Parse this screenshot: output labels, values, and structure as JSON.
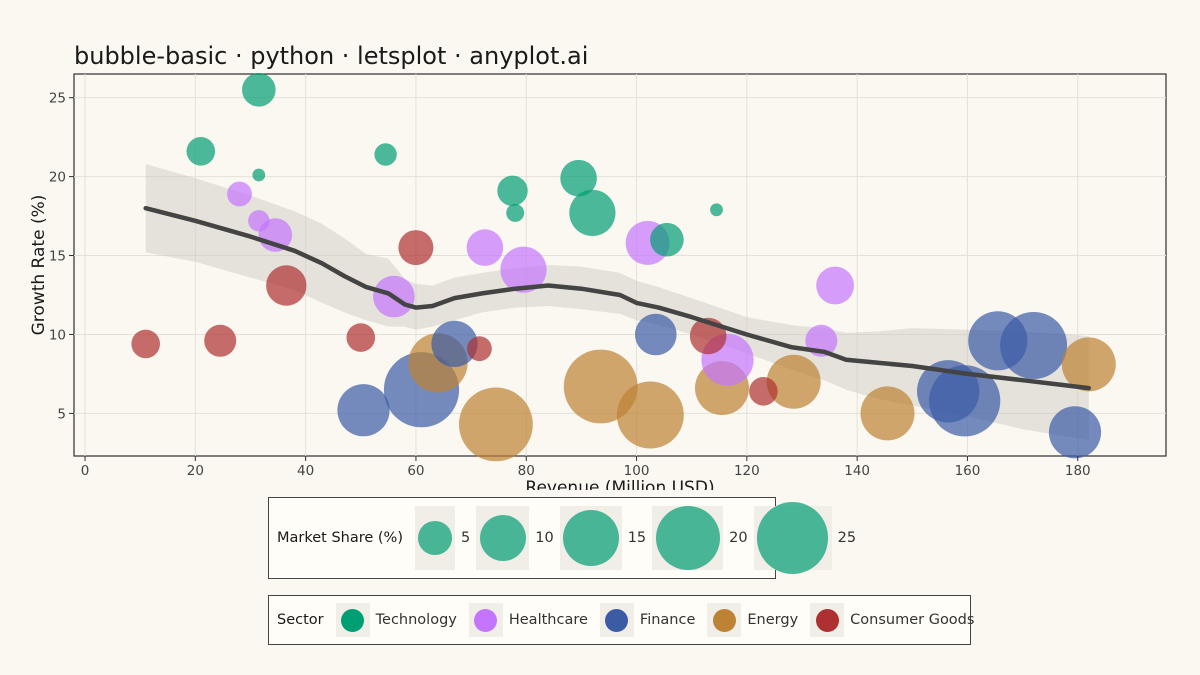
{
  "title": "bubble-basic · python · letsplot · anyplot.ai",
  "chart_data": {
    "type": "scatter",
    "subtype": "bubble",
    "title": "bubble-basic · python · letsplot · anyplot.ai",
    "xlabel": "Revenue (Million USD)",
    "ylabel": "Growth Rate (%)",
    "xlim": [
      -2,
      196
    ],
    "ylim": [
      2.3,
      26.5
    ],
    "xticks": [
      0,
      20,
      40,
      60,
      80,
      100,
      120,
      140,
      160,
      180
    ],
    "yticks": [
      5,
      10,
      15,
      20,
      25
    ],
    "grid": true,
    "size_variable": "Market Share (%)",
    "bubble_alpha": 0.7,
    "series": [
      {
        "name": "Technology",
        "color": "#009E73",
        "points": [
          {
            "x": 31.5,
            "y": 25.5,
            "size": 5
          },
          {
            "x": 21,
            "y": 21.6,
            "size": 3.5
          },
          {
            "x": 31.5,
            "y": 20.1,
            "size": 0.5
          },
          {
            "x": 54.5,
            "y": 21.4,
            "size": 2
          },
          {
            "x": 77.5,
            "y": 19.1,
            "size": 4
          },
          {
            "x": 78,
            "y": 17.7,
            "size": 1.2
          },
          {
            "x": 89.5,
            "y": 19.9,
            "size": 6
          },
          {
            "x": 92,
            "y": 17.7,
            "size": 10
          },
          {
            "x": 105.5,
            "y": 16,
            "size": 5
          },
          {
            "x": 114.5,
            "y": 17.9,
            "size": 0.5
          }
        ]
      },
      {
        "name": "Healthcare",
        "color": "#C475FD",
        "points": [
          {
            "x": 28,
            "y": 18.9,
            "size": 2.5
          },
          {
            "x": 31.5,
            "y": 17.2,
            "size": 1.8
          },
          {
            "x": 34.5,
            "y": 16.3,
            "size": 5
          },
          {
            "x": 56,
            "y": 12.4,
            "size": 8
          },
          {
            "x": 72.5,
            "y": 15.5,
            "size": 6
          },
          {
            "x": 79.5,
            "y": 14.1,
            "size": 10
          },
          {
            "x": 102,
            "y": 15.8,
            "size": 9
          },
          {
            "x": 116.5,
            "y": 8.4,
            "size": 13
          },
          {
            "x": 133.5,
            "y": 9.6,
            "size": 4.5
          },
          {
            "x": 136,
            "y": 13.1,
            "size": 6.5
          }
        ]
      },
      {
        "name": "Finance",
        "color": "#3B5BA5",
        "points": [
          {
            "x": 50.5,
            "y": 5.2,
            "size": 13
          },
          {
            "x": 61,
            "y": 6.5,
            "size": 28
          },
          {
            "x": 67,
            "y": 9.4,
            "size": 10
          },
          {
            "x": 103.5,
            "y": 10,
            "size": 8
          },
          {
            "x": 156.5,
            "y": 6.4,
            "size": 19
          },
          {
            "x": 159.5,
            "y": 5.8,
            "size": 25
          },
          {
            "x": 165.5,
            "y": 9.6,
            "size": 17
          },
          {
            "x": 172,
            "y": 9.3,
            "size": 22
          },
          {
            "x": 179.5,
            "y": 3.8,
            "size": 13
          }
        ]
      },
      {
        "name": "Energy",
        "color": "#BD8233",
        "points": [
          {
            "x": 64,
            "y": 8.2,
            "size": 17
          },
          {
            "x": 74.5,
            "y": 4.3,
            "size": 27
          },
          {
            "x": 93.5,
            "y": 6.7,
            "size": 27
          },
          {
            "x": 102.5,
            "y": 4.9,
            "size": 22
          },
          {
            "x": 115.5,
            "y": 6.6,
            "size": 14
          },
          {
            "x": 128.5,
            "y": 7,
            "size": 14
          },
          {
            "x": 145.5,
            "y": 5,
            "size": 14
          },
          {
            "x": 182,
            "y": 8.1,
            "size": 14
          }
        ]
      },
      {
        "name": "Consumer Goods",
        "color": "#AE3030",
        "points": [
          {
            "x": 11,
            "y": 9.4,
            "size": 3.5
          },
          {
            "x": 24.5,
            "y": 9.6,
            "size": 4.5
          },
          {
            "x": 36.5,
            "y": 13.1,
            "size": 7.5
          },
          {
            "x": 50,
            "y": 9.8,
            "size": 3.5
          },
          {
            "x": 60,
            "y": 15.5,
            "size": 5.5
          },
          {
            "x": 71.5,
            "y": 9.1,
            "size": 2.5
          },
          {
            "x": 113,
            "y": 9.9,
            "size": 6
          },
          {
            "x": 123,
            "y": 6.4,
            "size": 3.5
          }
        ]
      }
    ],
    "trend": {
      "x": [
        11,
        20,
        30,
        38,
        43,
        47,
        51,
        55,
        58,
        60,
        63,
        67,
        72,
        78,
        84,
        90,
        97,
        100,
        104,
        110,
        120,
        128,
        134,
        138,
        144,
        150,
        160,
        170,
        182
      ],
      "y": [
        18,
        17.2,
        16.2,
        15.3,
        14.5,
        13.7,
        13,
        12.6,
        11.9,
        11.7,
        11.8,
        12.3,
        12.6,
        12.9,
        13.1,
        12.9,
        12.5,
        12,
        11.7,
        11.1,
        10,
        9.2,
        8.9,
        8.4,
        8.2,
        8,
        7.5,
        7.1,
        6.6
      ],
      "lower": [
        15.2,
        14.6,
        13.6,
        12.8,
        12,
        11.4,
        10.9,
        10.5,
        10.5,
        10.3,
        10.5,
        10.9,
        11.4,
        11.7,
        11.8,
        11.6,
        11.3,
        10.9,
        10.6,
        10,
        8.8,
        7.8,
        7.1,
        6.5,
        5.9,
        5.5,
        4.8,
        4,
        3.3
      ],
      "upper": [
        20.8,
        19.9,
        18.8,
        17.8,
        17,
        16.1,
        15.1,
        14.8,
        13.5,
        13.2,
        13.1,
        13.6,
        13.9,
        14.2,
        14.4,
        14.3,
        13.9,
        13.4,
        13,
        12.3,
        11.1,
        10.6,
        10.4,
        10.1,
        10.2,
        10.4,
        10.3,
        10.2,
        9.9
      ]
    }
  },
  "size_legend": {
    "title": "Market Share (%)",
    "items": [
      {
        "label": "5",
        "size": 5
      },
      {
        "label": "10",
        "size": 10
      },
      {
        "label": "15",
        "size": 15
      },
      {
        "label": "20",
        "size": 20
      },
      {
        "label": "25",
        "size": 25
      }
    ]
  },
  "sector_legend": {
    "title": "Sector",
    "items": [
      {
        "label": "Technology",
        "color": "#009E73"
      },
      {
        "label": "Healthcare",
        "color": "#C475FD"
      },
      {
        "label": "Finance",
        "color": "#3B5BA5"
      },
      {
        "label": "Energy",
        "color": "#BD8233"
      },
      {
        "label": "Consumer Goods",
        "color": "#AE3030"
      }
    ]
  }
}
